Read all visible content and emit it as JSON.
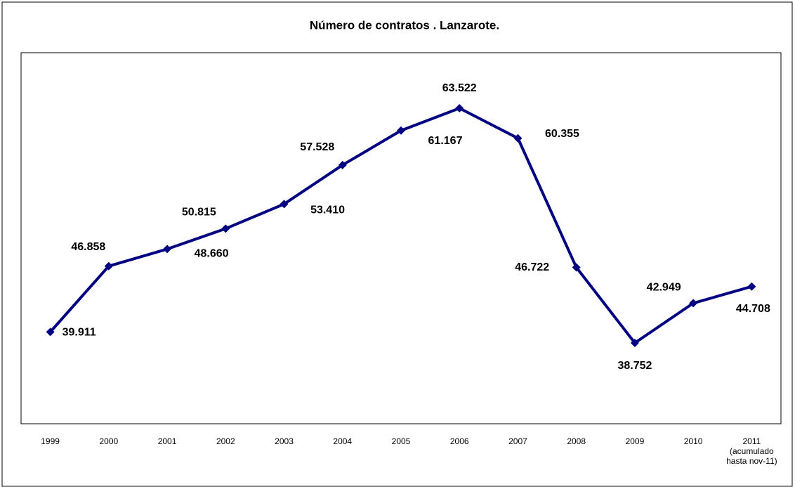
{
  "chart_data": {
    "type": "line",
    "title": "Número de contratos . Lanzarote.",
    "categories": [
      "1999",
      "2000",
      "2001",
      "2002",
      "2003",
      "2004",
      "2005",
      "2006",
      "2007",
      "2008",
      "2009",
      "2010",
      "2011 (acumulado hasta nov-11)"
    ],
    "series": [
      {
        "name": "Número de contratos",
        "color": "#000080",
        "values": [
          39911,
          46858,
          48660,
          50815,
          53410,
          57528,
          61167,
          63522,
          60355,
          46722,
          38752,
          42949,
          44708
        ],
        "value_labels": [
          "39.911",
          "46.858",
          "48.660",
          "50.815",
          "53.410",
          "57.528",
          "61.167",
          "63.522",
          "60.355",
          "46.722",
          "38.752",
          "42.949",
          "44.708"
        ]
      }
    ]
  }
}
